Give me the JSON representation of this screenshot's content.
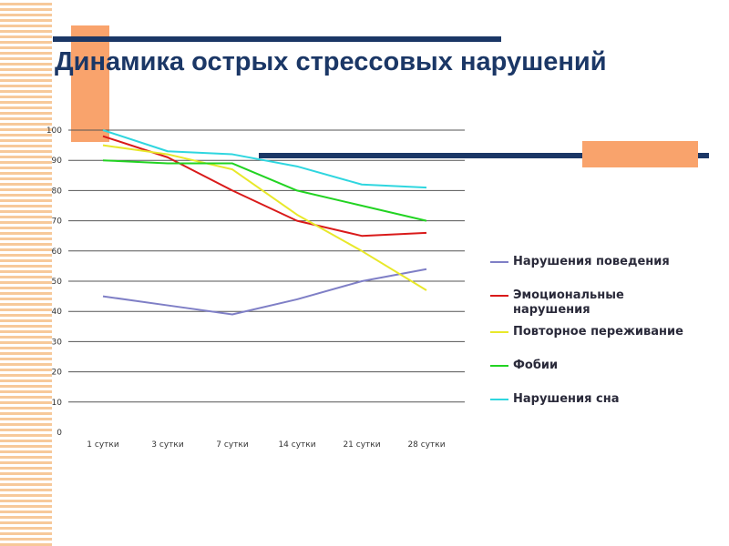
{
  "title": "Динамика острых стрессовых нарушений",
  "colors": {
    "accent_orange": "#f9a36c",
    "stripe_orange": "#f7c99a",
    "navy": "#1b3766"
  },
  "chart_data": {
    "type": "line",
    "categories": [
      "1 сутки",
      "3 сутки",
      "7 сутки",
      "14 сутки",
      "21 сутки",
      "28 сутки"
    ],
    "y_ticks": [
      0,
      10,
      20,
      30,
      40,
      50,
      60,
      70,
      80,
      90,
      100
    ],
    "ylim": [
      0,
      100
    ],
    "grid": true,
    "legend_position": "right",
    "series": [
      {
        "name": "Нарушения поведения",
        "color": "#7f7fc6",
        "values": [
          45,
          42,
          39,
          44,
          50,
          54
        ]
      },
      {
        "name": "Эмоциональные нарушения",
        "color": "#d91a1a",
        "values": [
          98,
          91,
          80,
          70,
          65,
          66
        ]
      },
      {
        "name": "Повторное переживание",
        "color": "#e8e82a",
        "values": [
          95,
          92,
          87,
          72,
          60,
          47
        ]
      },
      {
        "name": "Фобии",
        "color": "#22d322",
        "values": [
          90,
          89,
          89,
          80,
          75,
          70
        ]
      },
      {
        "name": "Нарушения сна",
        "color": "#2fd6df",
        "values": [
          100,
          93,
          92,
          88,
          82,
          81
        ]
      }
    ]
  }
}
